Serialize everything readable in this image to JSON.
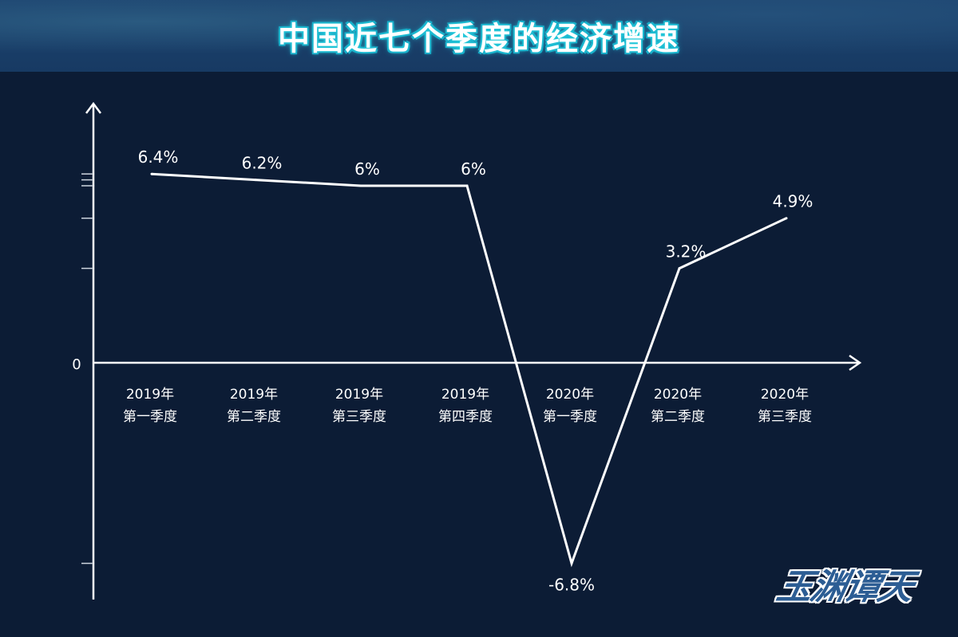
{
  "header": {
    "title": "中国近七个季度的经济增速"
  },
  "watermark": "玉渊谭天",
  "colors": {
    "background": "#0c1c35",
    "header": "#1d4470",
    "line": "#ffffff",
    "title_glow": "#29d3e0"
  },
  "chart_data": {
    "type": "line",
    "title": "中国近七个季度的经济增速",
    "categories": [
      [
        "2019年",
        "第一季度"
      ],
      [
        "2019年",
        "第二季度"
      ],
      [
        "2019年",
        "第三季度"
      ],
      [
        "2019年",
        "第四季度"
      ],
      [
        "2020年",
        "第一季度"
      ],
      [
        "2020年",
        "第二季度"
      ],
      [
        "2020年",
        "第三季度"
      ]
    ],
    "values": [
      6.4,
      6.2,
      6.0,
      6.0,
      -6.8,
      3.2,
      4.9
    ],
    "data_labels": [
      "6.4%",
      "6.2%",
      "6%",
      "6%",
      "-6.8%",
      "3.2%",
      "4.9%"
    ],
    "unit": "%",
    "y_tick_labels": [
      "0"
    ],
    "ylim": [
      -8,
      9
    ],
    "grid": false,
    "legend": "none"
  }
}
